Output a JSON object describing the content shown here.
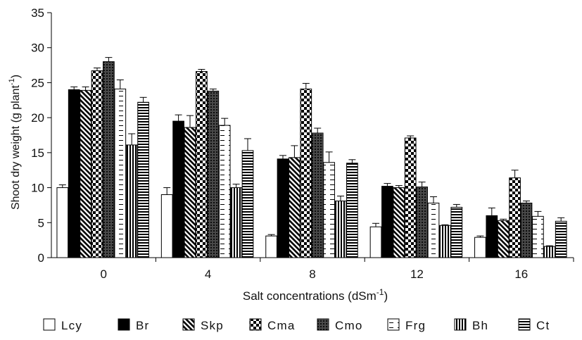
{
  "chart_data": {
    "type": "bar",
    "title": "",
    "xlabel": "Salt concentrations (dSm",
    "xlabel_sup": "-1",
    "xlabel_close": ")",
    "ylabel": "Shoot dry weight (g plant",
    "ylabel_sup": "-1",
    "ylabel_close": ")",
    "ylim": [
      0,
      35
    ],
    "yticks": [
      "0",
      "5",
      "10",
      "15",
      "20",
      "25",
      "30",
      "35"
    ],
    "categories": [
      "0",
      "4",
      "8",
      "12",
      "16"
    ],
    "grid": false,
    "legend_position": "bottom",
    "series": [
      {
        "name": "Lcy",
        "pattern": "empty",
        "values": [
          10.0,
          9.0,
          3.1,
          4.4,
          2.9
        ],
        "errors": [
          0.4,
          1.0,
          0.2,
          0.5,
          0.2
        ]
      },
      {
        "name": "Br",
        "pattern": "solid",
        "values": [
          24.0,
          19.5,
          14.1,
          10.2,
          6.0
        ],
        "errors": [
          0.4,
          0.9,
          0.5,
          0.4,
          1.1
        ]
      },
      {
        "name": "Skp",
        "pattern": "diagonal",
        "values": [
          23.9,
          18.6,
          14.3,
          10.0,
          5.3
        ],
        "errors": [
          0.5,
          1.7,
          1.7,
          0.3,
          0.2
        ]
      },
      {
        "name": "Cma",
        "pattern": "checker",
        "values": [
          26.7,
          26.6,
          24.1,
          17.1,
          11.4
        ],
        "errors": [
          0.4,
          0.3,
          0.8,
          0.3,
          1.1
        ]
      },
      {
        "name": "Cmo",
        "pattern": "crosshatch",
        "values": [
          28.0,
          23.8,
          17.8,
          10.1,
          7.8
        ],
        "errors": [
          0.6,
          0.3,
          0.7,
          0.7,
          0.3
        ]
      },
      {
        "name": "Frg",
        "pattern": "dashes",
        "values": [
          24.1,
          18.9,
          13.6,
          7.8,
          5.9
        ],
        "errors": [
          1.3,
          1.0,
          1.5,
          0.9,
          0.7
        ]
      },
      {
        "name": "Bh",
        "pattern": "vertical",
        "values": [
          16.1,
          10.0,
          8.1,
          4.6,
          1.6
        ],
        "errors": [
          1.6,
          0.5,
          0.7,
          0.1,
          0.1
        ]
      },
      {
        "name": "Ct",
        "pattern": "horizontal",
        "values": [
          22.2,
          15.3,
          13.5,
          7.2,
          5.2
        ],
        "errors": [
          0.7,
          1.7,
          0.5,
          0.4,
          0.5
        ]
      }
    ]
  }
}
